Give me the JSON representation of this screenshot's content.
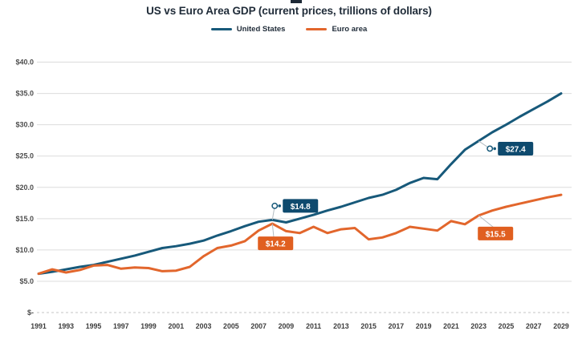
{
  "title": "US vs Euro Area GDP (current prices, trillions of dollars)",
  "legend": [
    {
      "label": "United States",
      "color": "#17597a"
    },
    {
      "label": "Euro area",
      "color": "#e2662c"
    }
  ],
  "chart_data": {
    "type": "line",
    "title": "US vs Euro Area GDP (current prices, trillions of dollars)",
    "xlabel": "",
    "ylabel": "",
    "ylim": [
      0,
      40
    ],
    "ytick_step": 5,
    "grid": true,
    "legend_position": "top",
    "x": [
      1991,
      1992,
      1993,
      1994,
      1995,
      1996,
      1997,
      1998,
      1999,
      2000,
      2001,
      2002,
      2003,
      2004,
      2005,
      2006,
      2007,
      2008,
      2009,
      2010,
      2011,
      2012,
      2013,
      2014,
      2015,
      2016,
      2017,
      2018,
      2019,
      2020,
      2021,
      2022,
      2023,
      2024,
      2025,
      2026,
      2027,
      2028,
      2029
    ],
    "series": [
      {
        "name": "United States",
        "color": "#17597a",
        "label_bg": "#0e4a6e",
        "values": [
          6.2,
          6.5,
          6.9,
          7.3,
          7.6,
          8.1,
          8.6,
          9.1,
          9.7,
          10.3,
          10.6,
          11.0,
          11.5,
          12.3,
          13.0,
          13.8,
          14.5,
          14.8,
          14.4,
          15.0,
          15.6,
          16.3,
          16.9,
          17.6,
          18.3,
          18.8,
          19.6,
          20.7,
          21.5,
          21.3,
          23.7,
          26.0,
          27.4,
          28.8,
          30.0,
          31.3,
          32.5,
          33.7,
          35.0
        ]
      },
      {
        "name": "Euro area",
        "color": "#e2662c",
        "label_bg": "#e05f20",
        "values": [
          6.2,
          6.9,
          6.4,
          6.8,
          7.5,
          7.6,
          7.0,
          7.2,
          7.1,
          6.6,
          6.7,
          7.3,
          9.0,
          10.3,
          10.7,
          11.4,
          13.1,
          14.2,
          13.0,
          12.7,
          13.7,
          12.7,
          13.3,
          13.5,
          11.7,
          12.0,
          12.7,
          13.7,
          13.4,
          13.1,
          14.6,
          14.1,
          15.5,
          16.3,
          16.9,
          17.4,
          17.9,
          18.4,
          18.8
        ]
      }
    ],
    "ytick_labels": [
      "$-",
      "$5.0",
      "$10.0",
      "$15.0",
      "$20.0",
      "$25.0",
      "$30.0",
      "$35.0",
      "$40.0"
    ],
    "xtick_labels": [
      "1991",
      "1993",
      "1995",
      "1997",
      "1999",
      "2001",
      "2003",
      "2005",
      "2007",
      "2009",
      "2011",
      "2013",
      "2015",
      "2017",
      "2019",
      "2021",
      "2023",
      "2025",
      "2027",
      "2029"
    ],
    "annotations": [
      {
        "series_index": 0,
        "year": 2008,
        "label": "$14.8",
        "box_dx": 13,
        "box_dy": -26,
        "dots": true
      },
      {
        "series_index": 1,
        "year": 2008,
        "label": "$14.2",
        "box_dx": -18,
        "box_dy": 16,
        "dots": false
      },
      {
        "series_index": 0,
        "year": 2023,
        "label": "$27.4",
        "box_dx": 24,
        "box_dy": 1,
        "dots": true
      },
      {
        "series_index": 1,
        "year": 2023,
        "label": "$15.5",
        "box_dx": -1,
        "box_dy": 14,
        "dots": false
      }
    ]
  }
}
